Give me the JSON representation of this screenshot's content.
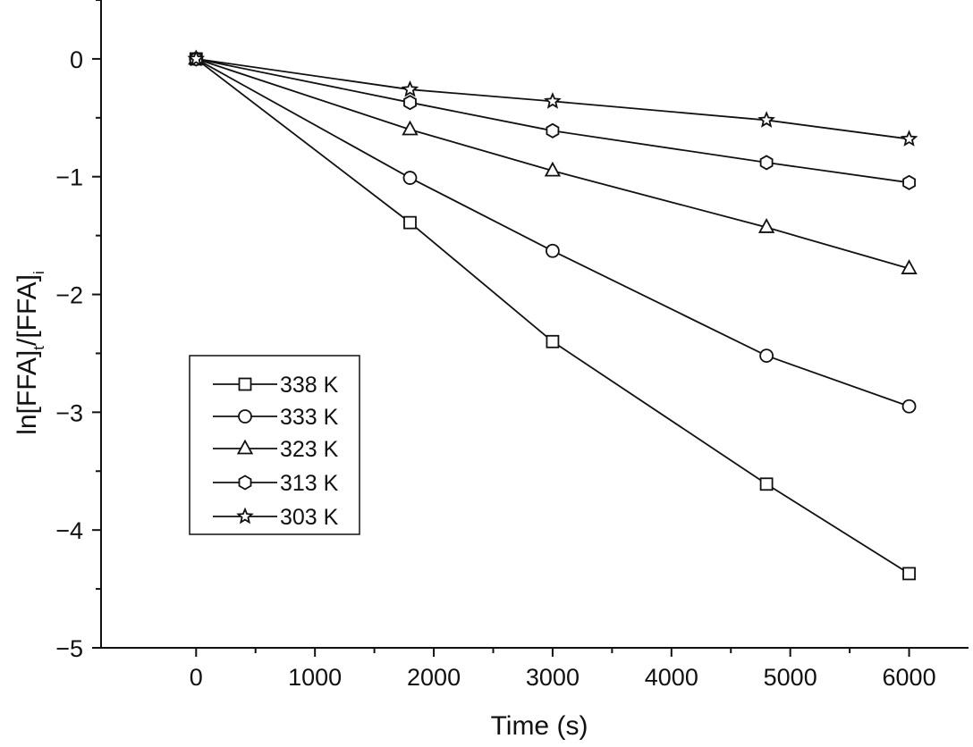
{
  "chart_data": {
    "type": "line",
    "title": "",
    "xlabel": "Time (s)",
    "ylabel": {
      "base1": "ln[FFA]",
      "sub1": "t",
      "base2": "/[FFA]",
      "sub2": "i"
    },
    "xlim": [
      -800,
      6500
    ],
    "ylim": [
      -5,
      0.5
    ],
    "x_ticks": [
      0,
      1000,
      2000,
      3000,
      4000,
      5000,
      6000
    ],
    "x_tick_labels": [
      "0",
      "1000",
      "2000",
      "3000",
      "4000",
      "5000",
      "6000"
    ],
    "y_ticks": [
      0,
      -1,
      -2,
      -3,
      -4,
      -5
    ],
    "y_tick_labels": [
      "0",
      "−1",
      "−2",
      "−3",
      "−4",
      "−5"
    ],
    "x": [
      0,
      1800,
      3000,
      4800,
      6000
    ],
    "series": [
      {
        "name": "338 K",
        "marker": "square",
        "values": [
          0,
          -1.39,
          -2.4,
          -3.61,
          -4.37
        ]
      },
      {
        "name": "333 K",
        "marker": "circle",
        "values": [
          0,
          -1.01,
          -1.63,
          -2.52,
          -2.95
        ]
      },
      {
        "name": "323 K",
        "marker": "triangle",
        "values": [
          0,
          -0.6,
          -0.95,
          -1.43,
          -1.78
        ]
      },
      {
        "name": "313 K",
        "marker": "hexagon",
        "values": [
          0,
          -0.37,
          -0.61,
          -0.88,
          -1.05
        ]
      },
      {
        "name": "303 K",
        "marker": "star",
        "values": [
          0,
          -0.26,
          -0.36,
          -0.52,
          -0.68
        ]
      }
    ],
    "legend_position": "lower-left",
    "grid": false,
    "line_color": "#111111",
    "marker_fill": "#ffffff"
  }
}
